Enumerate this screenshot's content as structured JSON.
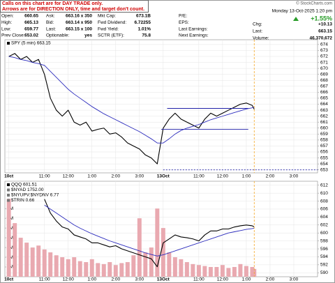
{
  "header": {
    "note": [
      "Calls on this chart are for DAY TRADE only.",
      "Arrows are for DIRECTION ONLY, time and target don't count."
    ],
    "rows": [
      [
        [
          "Open:",
          "660.65"
        ],
        [
          "Ask:",
          "663.16 x 350"
        ],
        [
          "Mkt Cap:",
          "673.1B"
        ],
        [
          "P/E:"
        ]
      ],
      [
        [
          "High:",
          "665.13"
        ],
        [
          "Bid:",
          "663.14 x 950"
        ],
        [
          "Fwd Dividend:",
          "6.72255"
        ],
        [
          "EPS:"
        ]
      ],
      [
        [
          "Low:",
          "659.77"
        ],
        [
          "Last:",
          "663.15 x 100"
        ],
        [
          "Fwd Yield:",
          "1.01%"
        ],
        [
          "Last Earnings:"
        ]
      ],
      [
        [
          "Prev Close:",
          "653.02"
        ],
        [
          "Optionable:",
          "yes"
        ],
        [
          "SCTR (ETF):",
          "75.8"
        ],
        [
          "Next Earnings:"
        ]
      ]
    ],
    "date": "Monday  13-Oct-2025  1:20 pm",
    "change_pct": "+1.55%",
    "stats": [
      [
        "Chg:",
        "+10.13"
      ],
      [
        "Last:",
        "663.15"
      ],
      [
        "Volume:",
        "46,370,672"
      ]
    ],
    "credit": "© StockCharts.com"
  },
  "chart_data": [
    {
      "type": "line",
      "x": [
        0,
        3,
        6,
        9,
        12,
        15,
        18,
        21,
        24,
        27,
        30,
        33,
        36,
        39,
        42,
        45,
        48,
        51,
        54,
        57,
        60,
        63,
        66,
        69,
        72,
        75,
        78,
        81,
        84,
        87,
        90,
        93,
        96,
        99,
        102,
        105,
        108,
        111,
        114,
        117,
        120,
        123,
        124
      ],
      "series": [
        {
          "name": "SPY (5 min) 663.15",
          "color": "#000000",
          "values": [
            672,
            672.5,
            671.5,
            672,
            671,
            671.5,
            669,
            665,
            663,
            662,
            663,
            661,
            660.5,
            661,
            659.5,
            659.8,
            660,
            659,
            659.2,
            658.5,
            657.5,
            657,
            656.5,
            655.5,
            655,
            654,
            660,
            661.5,
            662.5,
            661.5,
            661,
            660.5,
            660,
            661.5,
            662.5,
            662,
            662.5,
            663,
            663.5,
            664,
            664.2,
            663.8,
            663.15
          ]
        },
        {
          "color": "#2b2bbd",
          "values": [
            672,
            671.8,
            671.5,
            671.3,
            671,
            670.8,
            670.5,
            669.5,
            668.5,
            667.5,
            666.5,
            665.7,
            665,
            664.3,
            663.6,
            663,
            662.4,
            661.9,
            661.4,
            660.9,
            660.4,
            659.9,
            659.4,
            658.8,
            658.2,
            657.5,
            657.5,
            658.2,
            659,
            659.6,
            660,
            660.3,
            660.6,
            661,
            661.4,
            661.7,
            662,
            662.3,
            662.6,
            662.9,
            663.2,
            663.4,
            663.5
          ]
        }
      ],
      "xlim": [
        -2,
        156
      ],
      "xticks": [
        {
          "value": 0,
          "label": "10ct"
        },
        {
          "value": 18,
          "label": "11:00"
        },
        {
          "value": 30,
          "label": "12:00"
        },
        {
          "value": 42,
          "label": "1:00"
        },
        {
          "value": 54,
          "label": "2:00"
        },
        {
          "value": 66,
          "label": "3:00"
        },
        {
          "value": 78,
          "label": "13Oct"
        },
        {
          "value": 96,
          "label": "11:00"
        },
        {
          "value": 108,
          "label": "12:00"
        },
        {
          "value": 120,
          "label": "1:00"
        },
        {
          "value": 132,
          "label": "2:00"
        },
        {
          "value": 144,
          "label": "3:00"
        }
      ],
      "ylim": [
        652.5,
        674.8
      ],
      "yticks": [
        653,
        654,
        655,
        656,
        657,
        658,
        659,
        660,
        661,
        662,
        663,
        664,
        665,
        666,
        667,
        668,
        669,
        670,
        671,
        672,
        673,
        674
      ],
      "grid": true,
      "hlines": [
        {
          "y": 663.3,
          "x": [
            80,
            121
          ],
          "color": "#1f1fa8"
        },
        {
          "y": 659.8,
          "x": [
            77,
            121
          ],
          "color": "#1f1fa8"
        },
        {
          "y": 653,
          "x": [
            78,
            156
          ],
          "color": "#1f1fa8",
          "dashed": true
        }
      ],
      "marker_x": 124
    },
    {
      "type": "line",
      "x": [
        0,
        3,
        6,
        9,
        12,
        15,
        18,
        21,
        24,
        27,
        30,
        33,
        36,
        39,
        42,
        45,
        48,
        51,
        54,
        57,
        60,
        63,
        66,
        69,
        72,
        75,
        78,
        81,
        84,
        87,
        90,
        93,
        96,
        99,
        102,
        105,
        108,
        111,
        114,
        117,
        120,
        123,
        124
      ],
      "series": [
        {
          "type": "bar",
          "axis": "y2",
          "color": "#e9a9b0",
          "values": [
            8,
            5.5,
            4,
            3.5,
            3,
            3.2,
            2.8,
            2.5,
            2.2,
            2,
            1.8,
            2,
            1.6,
            1.5,
            1.8,
            1.4,
            1.3,
            1.5,
            1.2,
            1.4,
            1.5,
            2.2,
            6,
            2.5,
            3,
            7,
            5,
            2.5,
            2,
            1.8,
            1.5,
            1.3,
            1.2,
            1.1,
            1,
            1,
            1.2,
            0.9,
            1,
            1.3,
            1.1,
            1,
            0.8
          ]
        },
        {
          "name": "QQQ 601.51",
          "color": "#000000",
          "values": [
            null,
            null,
            null,
            null,
            null,
            null,
            608.5,
            605,
            603,
            601.5,
            601,
            599.5,
            599,
            598.5,
            597.5,
            597.5,
            597,
            596.5,
            596.8,
            596,
            595.5,
            595,
            594.5,
            594,
            593.5,
            591.5,
            597.5,
            598.5,
            599.5,
            599,
            598.8,
            598.5,
            598,
            599.5,
            600.5,
            600.5,
            601,
            601,
            601.5,
            601.8,
            602,
            601.8,
            601.51
          ]
        },
        {
          "color": "#2b2bbd",
          "values": [
            null,
            null,
            null,
            null,
            null,
            null,
            607,
            606,
            605,
            604,
            603,
            602,
            601.2,
            600.5,
            599.8,
            599.2,
            598.6,
            598,
            597.5,
            597,
            596.5,
            596,
            595.5,
            595,
            594.6,
            594.2,
            594.5,
            595,
            595.5,
            596,
            596.5,
            597,
            597.5,
            598,
            598.5,
            599,
            599.5,
            600,
            600.3,
            600.6,
            600.9,
            601.1,
            601.2
          ]
        }
      ],
      "labels": [
        "$NYAD 1752.00",
        "$NYUPV:$NYDNV 6.77",
        "$TRIN 0.66"
      ],
      "xlim": [
        -2,
        156
      ],
      "xticks": [
        {
          "value": 0,
          "label": "10ct"
        },
        {
          "value": 18,
          "label": "11:00"
        },
        {
          "value": 30,
          "label": "12:00"
        },
        {
          "value": 42,
          "label": "1:00"
        },
        {
          "value": 54,
          "label": "2:00"
        },
        {
          "value": 66,
          "label": "3:00"
        },
        {
          "value": 78,
          "label": "13Oct"
        },
        {
          "value": 96,
          "label": "11:00"
        },
        {
          "value": 108,
          "label": "12:00"
        },
        {
          "value": 120,
          "label": "1:00"
        },
        {
          "value": 132,
          "label": "2:00"
        },
        {
          "value": 144,
          "label": "3:00"
        }
      ],
      "ylim": [
        589,
        613
      ],
      "yticks": [
        590,
        592,
        594,
        596,
        598,
        600,
        602,
        604,
        606,
        608,
        610,
        612
      ],
      "y2lim": [
        0,
        9.8
      ],
      "y2ticks": [
        {
          "value": 1,
          "label": "1M"
        },
        {
          "value": 2,
          "label": "2M"
        },
        {
          "value": 3,
          "label": "3M"
        },
        {
          "value": 4,
          "label": "4M"
        },
        {
          "value": 5,
          "label": "5M"
        },
        {
          "value": 6,
          "label": "6M"
        },
        {
          "value": 7,
          "label": "7M"
        }
      ],
      "grid": true,
      "marker_x": 124
    }
  ]
}
